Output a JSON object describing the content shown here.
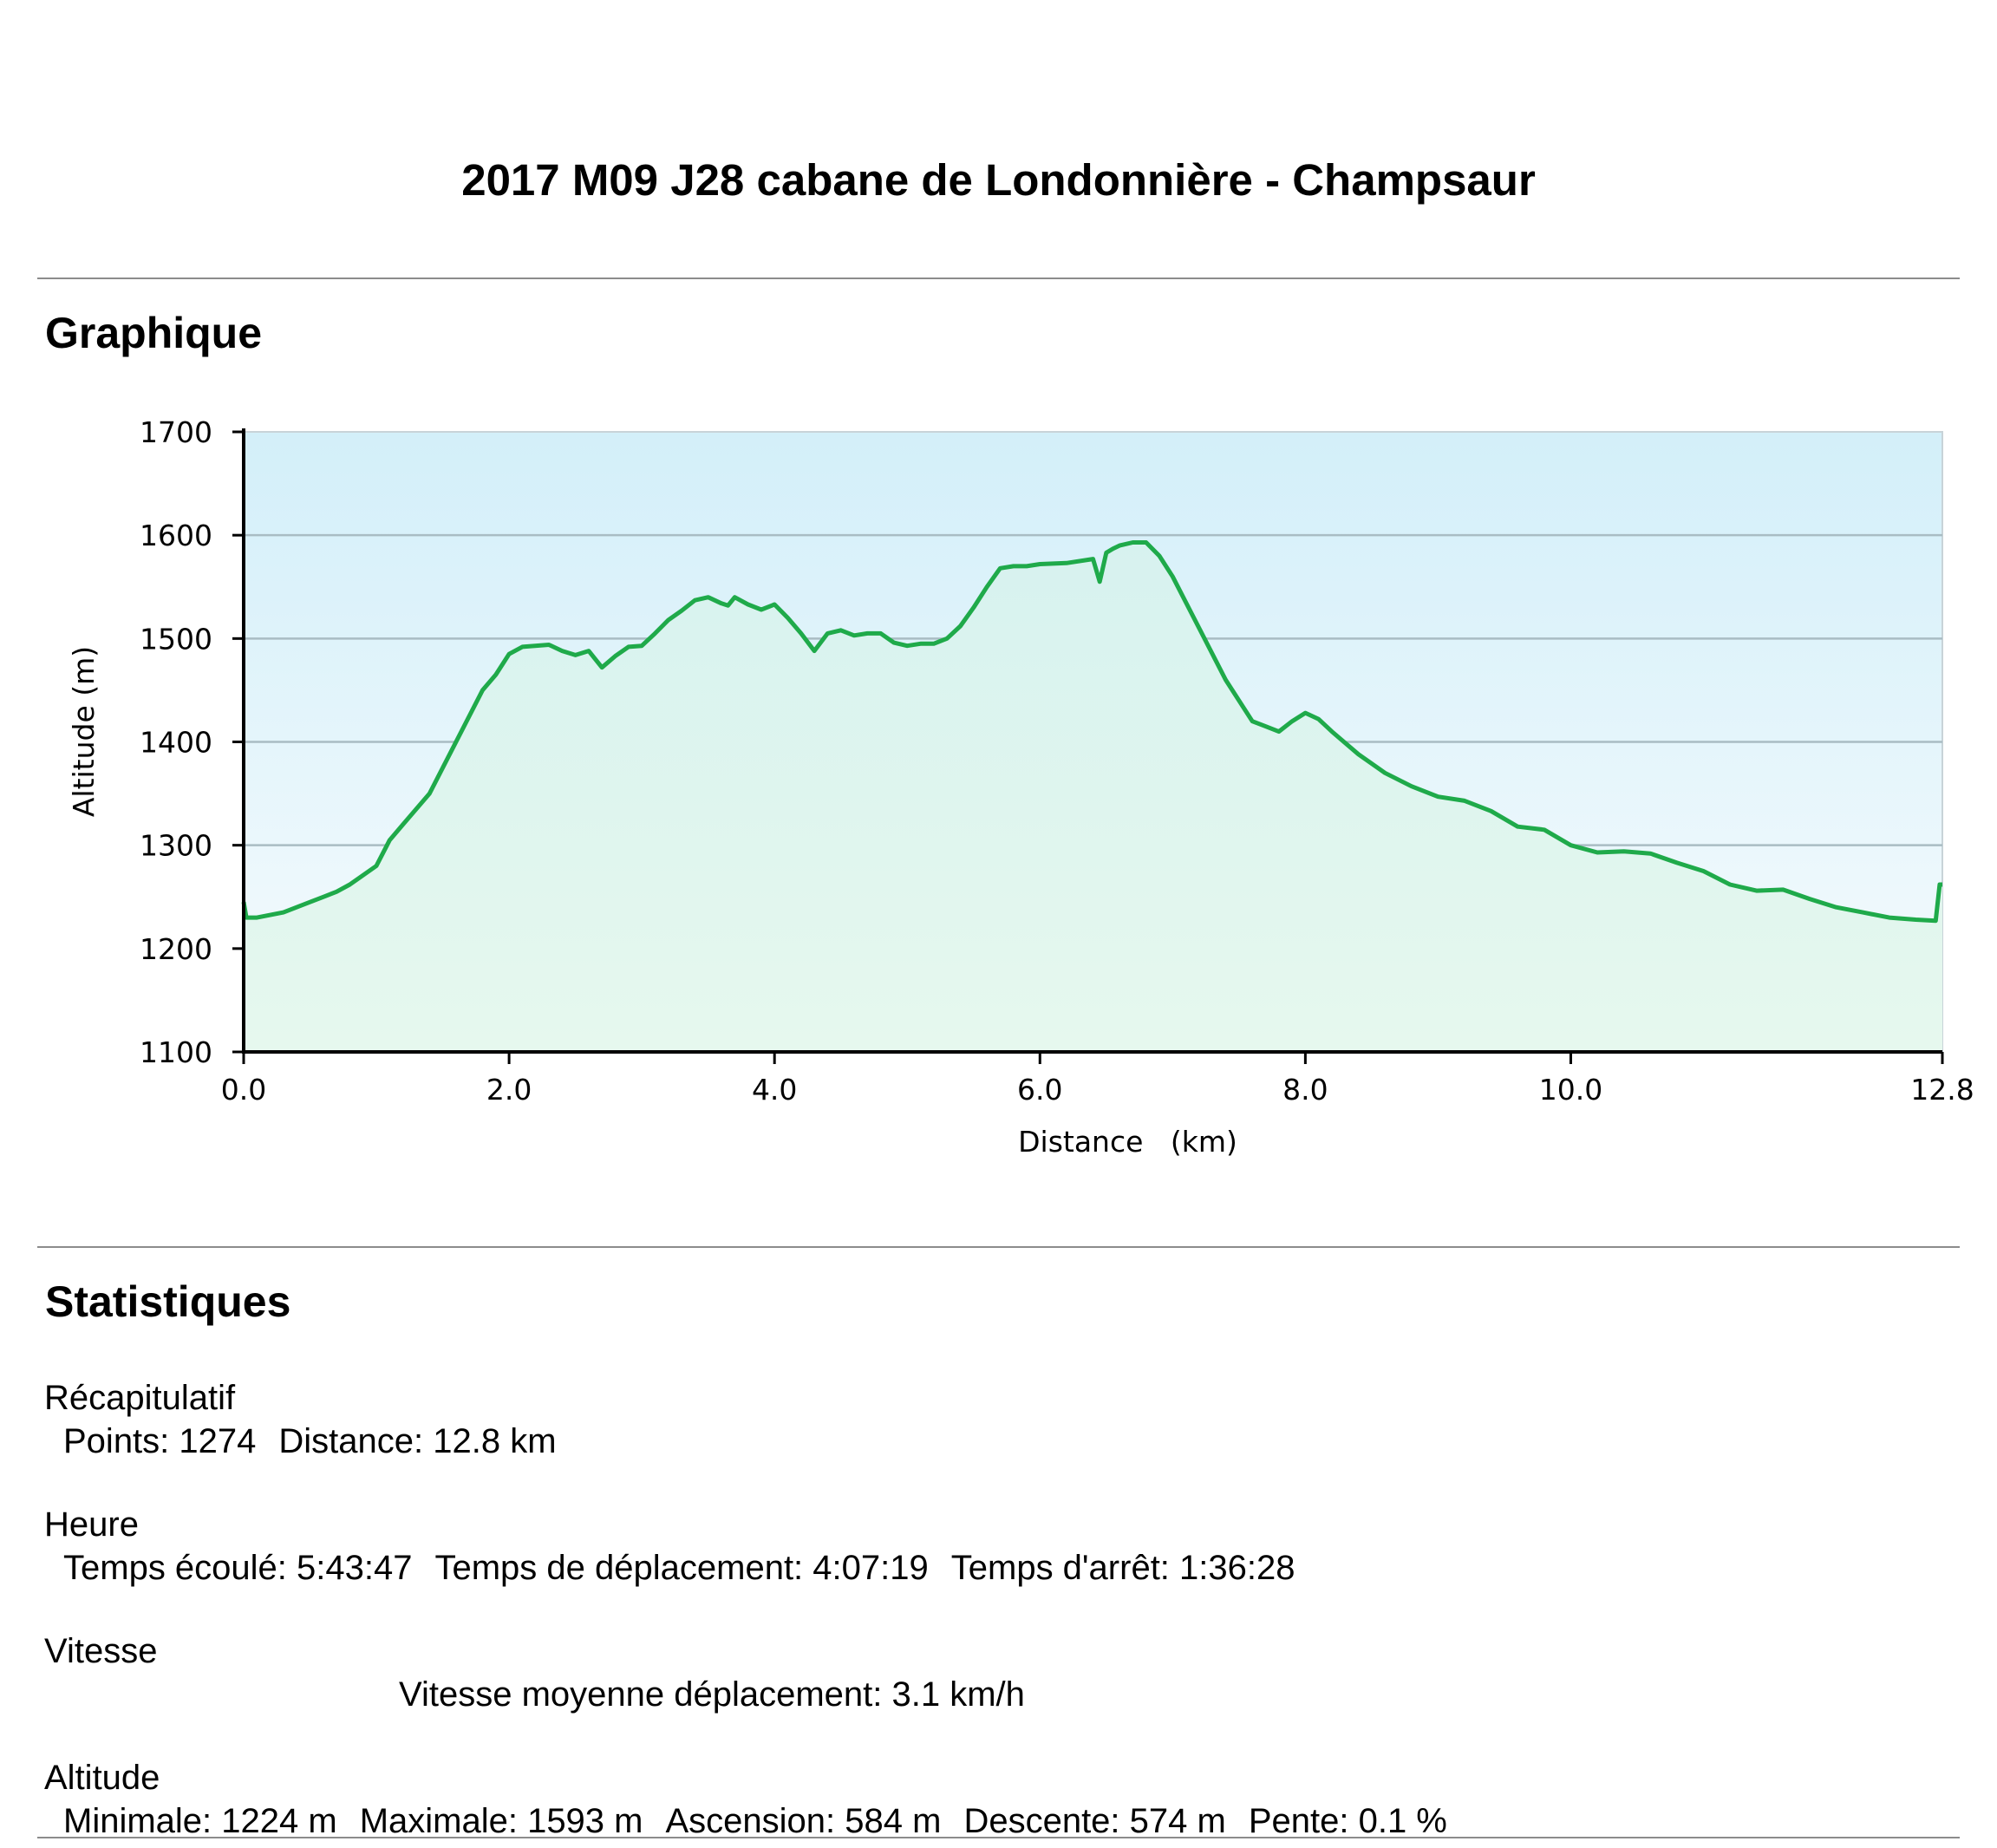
{
  "title": "2017 M09 J28 cabane de Londonnière - Champsaur",
  "sections": {
    "graph": "Graphique",
    "stats": "Statistiques"
  },
  "chart_data": {
    "type": "area",
    "xlabel": "Distance   (km)",
    "ylabel": "Altitude (m)",
    "xlim": [
      0,
      12.8
    ],
    "ylim": [
      1100,
      1700
    ],
    "xticks": [
      "0.0",
      "2.0",
      "4.0",
      "6.0",
      "8.0",
      "10.0",
      "12.8"
    ],
    "xtick_values": [
      0,
      2,
      4,
      6,
      8,
      10,
      12.8
    ],
    "yticks": [
      1700,
      1600,
      1500,
      1400,
      1300,
      1200,
      1100
    ],
    "grid": true,
    "colors": {
      "line": "#1faa4a",
      "fill_top": "#d6f0fa",
      "fill_bottom": "#d9f5e3"
    },
    "x": [
      0.0,
      0.02,
      0.1,
      0.3,
      0.5,
      0.6,
      0.7,
      0.8,
      1.0,
      1.1,
      1.2,
      1.4,
      1.6,
      1.8,
      1.9,
      2.0,
      2.1,
      2.3,
      2.4,
      2.5,
      2.6,
      2.7,
      2.8,
      2.9,
      3.0,
      3.1,
      3.2,
      3.3,
      3.4,
      3.5,
      3.6,
      3.65,
      3.7,
      3.8,
      3.9,
      4.0,
      4.1,
      4.2,
      4.3,
      4.4,
      4.5,
      4.6,
      4.7,
      4.8,
      4.9,
      5.0,
      5.1,
      5.2,
      5.3,
      5.4,
      5.5,
      5.6,
      5.7,
      5.8,
      5.9,
      6.0,
      6.2,
      6.4,
      6.45,
      6.5,
      6.55,
      6.6,
      6.7,
      6.8,
      6.9,
      7.0,
      7.1,
      7.2,
      7.4,
      7.6,
      7.7,
      7.8,
      7.9,
      8.0,
      8.1,
      8.2,
      8.4,
      8.6,
      8.8,
      9.0,
      9.2,
      9.4,
      9.6,
      9.8,
      10.0,
      10.2,
      10.4,
      10.6,
      10.8,
      11.0,
      11.2,
      11.4,
      11.6,
      11.8,
      12.0,
      12.2,
      12.4,
      12.6,
      12.75,
      12.78,
      12.8
    ],
    "y": [
      1245,
      1230,
      1230,
      1235,
      1245,
      1250,
      1255,
      1262,
      1280,
      1305,
      1320,
      1350,
      1400,
      1450,
      1465,
      1485,
      1492,
      1494,
      1488,
      1484,
      1488,
      1472,
      1483,
      1492,
      1493,
      1505,
      1518,
      1527,
      1537,
      1540,
      1534,
      1532,
      1540,
      1533,
      1528,
      1533,
      1520,
      1505,
      1488,
      1505,
      1508,
      1503,
      1505,
      1505,
      1496,
      1493,
      1495,
      1495,
      1500,
      1512,
      1530,
      1550,
      1568,
      1570,
      1570,
      1572,
      1573,
      1577,
      1555,
      1583,
      1587,
      1590,
      1593,
      1593,
      1580,
      1560,
      1535,
      1510,
      1460,
      1420,
      1415,
      1410,
      1420,
      1428,
      1422,
      1410,
      1388,
      1370,
      1357,
      1347,
      1343,
      1333,
      1318,
      1315,
      1300,
      1293,
      1294,
      1292,
      1283,
      1275,
      1262,
      1256,
      1257,
      1248,
      1240,
      1235,
      1230,
      1228,
      1227,
      1262,
      1262
    ]
  },
  "stats": {
    "groups": [
      {
        "title": "Récapitulatif",
        "items": [
          "Points: 1274",
          "Distance: 12.8 km"
        ]
      },
      {
        "title": "Heure",
        "items": [
          "Temps écoulé: 5:43:47",
          "Temps de déplacement: 4:07:19",
          "Temps d'arrêt: 1:36:28"
        ]
      },
      {
        "title": "Vitesse",
        "items": [
          "Vitesse moyenne déplacement: 3.1 km/h"
        ]
      },
      {
        "title": "Altitude",
        "items": [
          "Minimale: 1224 m",
          "Maximale: 1593 m",
          "Ascension: 584 m",
          "Descente: 574 m",
          "Pente: 0.1 %"
        ]
      }
    ]
  }
}
